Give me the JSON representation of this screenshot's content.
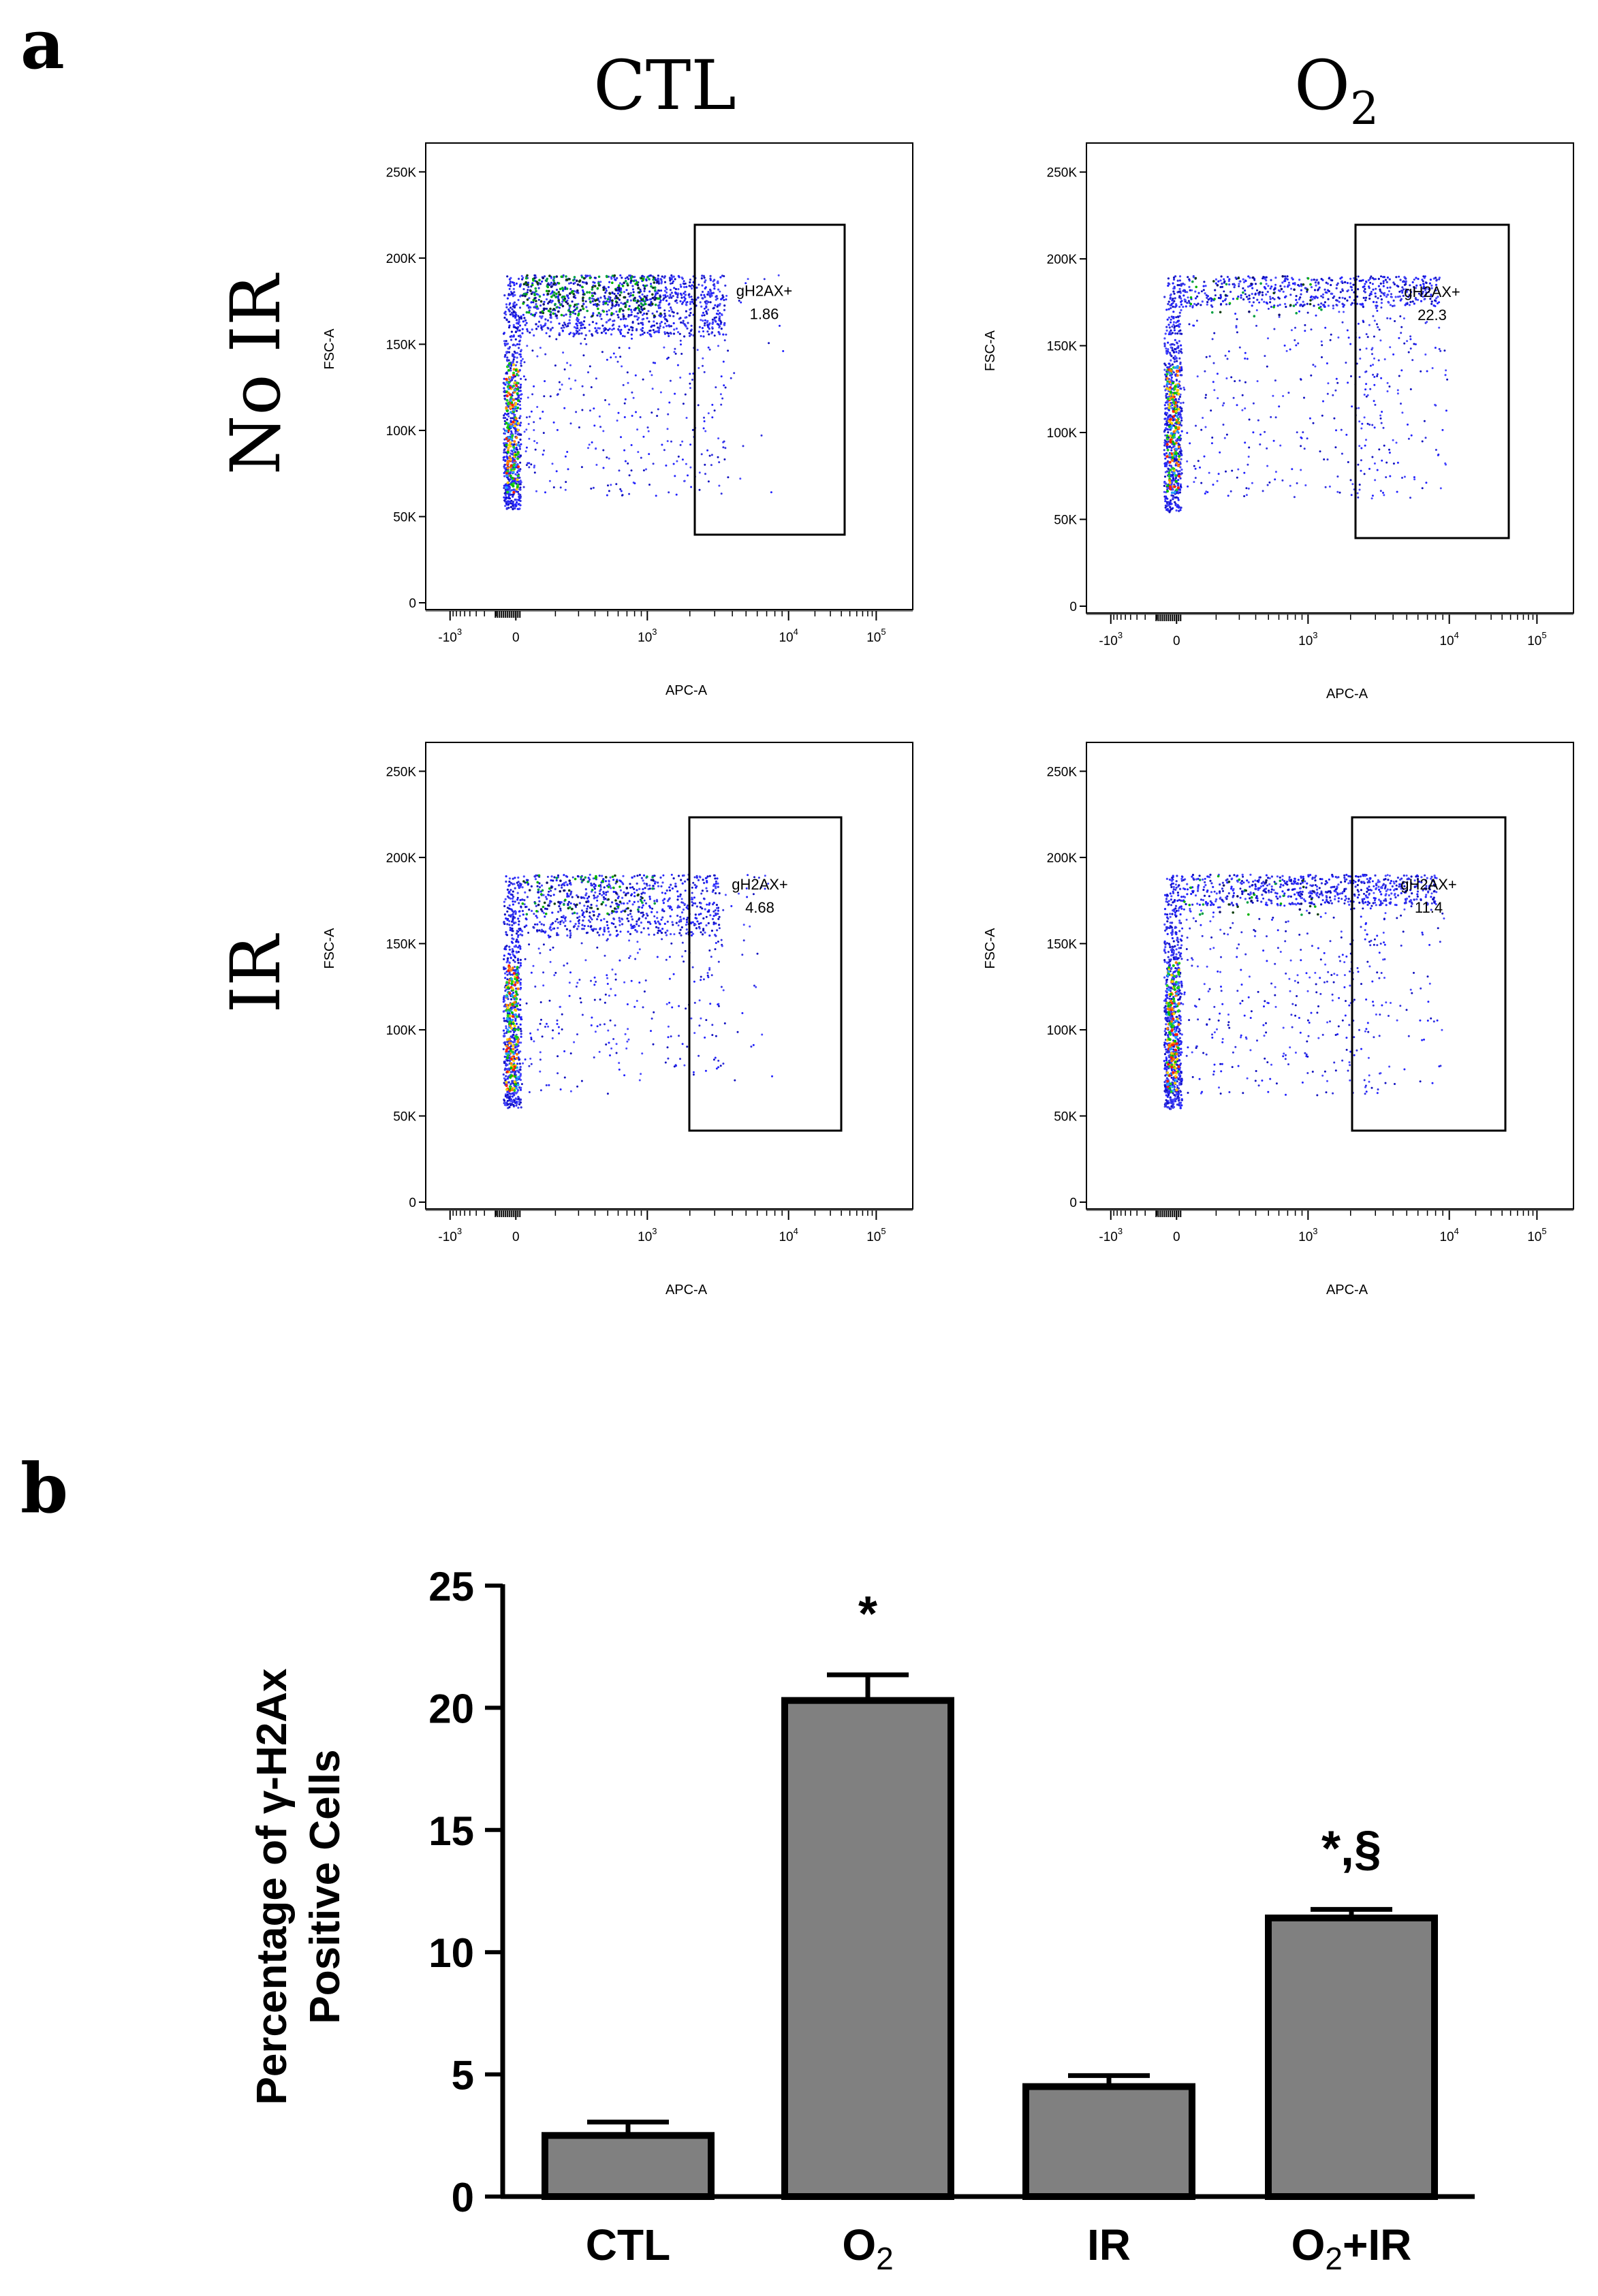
{
  "panel_a": {
    "label": "a",
    "columns": [
      {
        "text": "CTL",
        "sub": ""
      },
      {
        "text": "O",
        "sub": "2"
      }
    ],
    "rows": [
      "No IR",
      "IR"
    ]
  },
  "panel_b": {
    "label": "b"
  },
  "chart_data": [
    {
      "type": "scatter",
      "panel": "No IR / CTL",
      "xlabel": "APC-A",
      "ylabel": "FSC-A",
      "x_ticks": [
        "-10",
        "0",
        "10",
        "10",
        "10"
      ],
      "x_tick_exponents": [
        "3",
        "",
        "3",
        "4",
        "5"
      ],
      "y_ticks": [
        "0",
        "50K",
        "100K",
        "150K",
        "200K",
        "250K"
      ],
      "ylim": [
        0,
        262000
      ],
      "gate": {
        "name": "gH2AX+",
        "value": "1.86"
      }
    },
    {
      "type": "scatter",
      "panel": "No IR / O2",
      "xlabel": "APC-A",
      "ylabel": "FSC-A",
      "x_ticks": [
        "-10",
        "0",
        "10",
        "10",
        "10"
      ],
      "x_tick_exponents": [
        "3",
        "",
        "3",
        "4",
        "5"
      ],
      "y_ticks": [
        "0",
        "50K",
        "100K",
        "150K",
        "200K",
        "250K"
      ],
      "ylim": [
        0,
        262000
      ],
      "gate": {
        "name": "gH2AX+",
        "value": "22.3"
      }
    },
    {
      "type": "scatter",
      "panel": "IR / CTL",
      "xlabel": "APC-A",
      "ylabel": "FSC-A",
      "x_ticks": [
        "-10",
        "0",
        "10",
        "10",
        "10"
      ],
      "x_tick_exponents": [
        "3",
        "",
        "3",
        "4",
        "5"
      ],
      "y_ticks": [
        "0",
        "50K",
        "100K",
        "150K",
        "200K",
        "250K"
      ],
      "ylim": [
        0,
        262000
      ],
      "gate": {
        "name": "gH2AX+",
        "value": "4.68"
      }
    },
    {
      "type": "scatter",
      "panel": "IR / O2",
      "xlabel": "APC-A",
      "ylabel": "FSC-A",
      "x_ticks": [
        "-10",
        "0",
        "10",
        "10",
        "10"
      ],
      "x_tick_exponents": [
        "3",
        "",
        "3",
        "4",
        "5"
      ],
      "y_ticks": [
        "0",
        "50K",
        "100K",
        "150K",
        "200K",
        "250K"
      ],
      "ylim": [
        0,
        262000
      ],
      "gate": {
        "name": "gH2AX+",
        "value": "11.4"
      }
    },
    {
      "type": "bar",
      "ylabel_lines": [
        "Percentage of γ-H2Ax",
        "Positive Cells"
      ],
      "ylim": [
        0,
        25
      ],
      "yticks": [
        "0",
        "5",
        "10",
        "15",
        "20",
        "25"
      ],
      "categories": [
        {
          "text": "CTL",
          "sub": "",
          "after": ""
        },
        {
          "text": "O",
          "sub": "2",
          "after": ""
        },
        {
          "text": "IR",
          "sub": "",
          "after": ""
        },
        {
          "text": "O",
          "sub": "2",
          "after": "+IR"
        }
      ],
      "values": [
        2.5,
        20.3,
        4.5,
        11.4
      ],
      "errors": [
        0.55,
        1.05,
        0.45,
        0.35
      ],
      "annotations": [
        "",
        "*",
        "",
        "*,§"
      ],
      "bar_color": "#808080"
    }
  ]
}
